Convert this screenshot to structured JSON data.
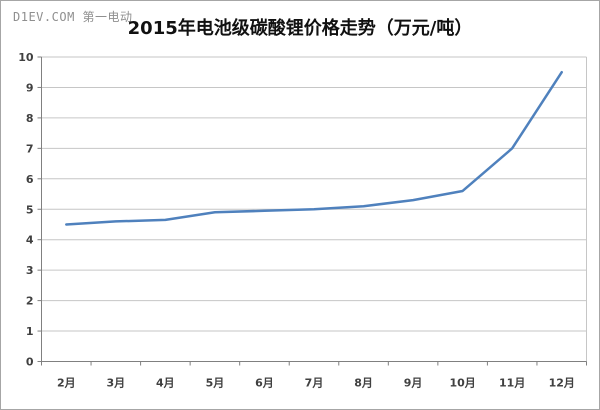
{
  "watermark": "D1EV.COM 第一电动",
  "chart_data": {
    "type": "line",
    "title": "2015年电池级碳酸锂价格走势（万元/吨）",
    "categories": [
      "2月",
      "3月",
      "4月",
      "5月",
      "6月",
      "7月",
      "8月",
      "9月",
      "10月",
      "11月",
      "12月"
    ],
    "series": [
      {
        "values": [
          4.5,
          4.6,
          4.65,
          4.9,
          4.95,
          5.0,
          5.1,
          5.3,
          5.6,
          7.0,
          9.5
        ]
      }
    ],
    "xlabel": "",
    "ylabel": "",
    "ylim": [
      0,
      10
    ],
    "ytick_step": 1,
    "grid": true,
    "legend_position": "none",
    "colors": {
      "line": "#4F81BD",
      "gridline": "#C6C6C6",
      "axis": "#808080",
      "plot_right_border": "#C6C6C6",
      "tick_label": "#404040",
      "title": "#111111",
      "watermark": "#8f8f8f"
    }
  }
}
